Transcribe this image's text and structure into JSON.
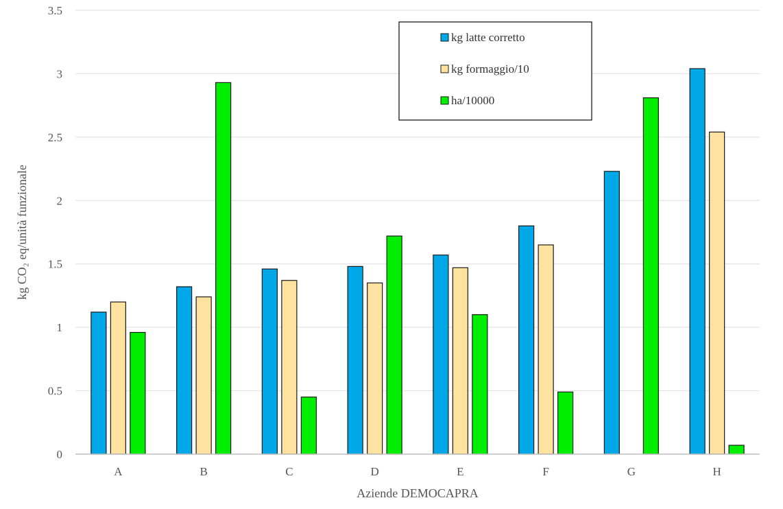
{
  "chart_data": {
    "type": "bar",
    "xlabel": "Aziende DEMOCAPRA",
    "ylabel": "kg CO₂ eq/unità funzionale",
    "ylim": [
      0,
      3.5
    ],
    "yticks": [
      "0",
      "0.5",
      "1",
      "1.5",
      "2",
      "2.5",
      "3",
      "3.5"
    ],
    "categories": [
      "A",
      "B",
      "C",
      "D",
      "E",
      "F",
      "G",
      "H"
    ],
    "series": [
      {
        "name": "kg latte corretto",
        "color": "#00a8e8",
        "values": [
          1.12,
          1.32,
          1.46,
          1.48,
          1.57,
          1.8,
          2.23,
          3.04
        ]
      },
      {
        "name": "kg formaggio/10",
        "color": "#fde2a0",
        "values": [
          1.2,
          1.24,
          1.37,
          1.35,
          1.47,
          1.65,
          null,
          2.54
        ]
      },
      {
        "name": "ha/10000",
        "color": "#00ee00",
        "values": [
          0.96,
          2.93,
          0.45,
          1.72,
          1.1,
          0.49,
          2.81,
          0.07
        ]
      }
    ],
    "grid": true,
    "legend_position": "top-right"
  }
}
